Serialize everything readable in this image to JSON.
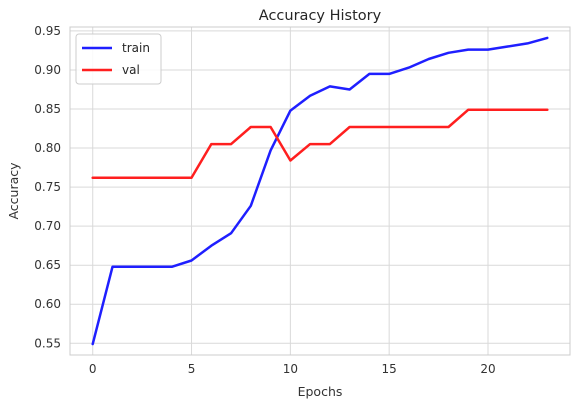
{
  "chart_data": {
    "type": "line",
    "title": "Accuracy History",
    "xlabel": "Epochs",
    "ylabel": "Accuracy",
    "xlim": [
      -1.15,
      24.15
    ],
    "ylim": [
      0.535,
      0.955
    ],
    "xticks": [
      0,
      5,
      10,
      15,
      20
    ],
    "yticks": [
      0.55,
      0.6,
      0.65,
      0.7,
      0.75,
      0.8,
      0.85,
      0.9,
      0.95
    ],
    "grid": true,
    "legend_position": "top-left",
    "x": [
      0,
      1,
      2,
      3,
      4,
      5,
      6,
      7,
      8,
      9,
      10,
      11,
      12,
      13,
      14,
      15,
      16,
      17,
      18,
      19,
      20,
      21,
      22,
      23
    ],
    "series": [
      {
        "name": "train",
        "color": "#1f1fff",
        "values": [
          0.549,
          0.648,
          0.648,
          0.648,
          0.648,
          0.656,
          0.675,
          0.691,
          0.726,
          0.797,
          0.848,
          0.867,
          0.879,
          0.875,
          0.895,
          0.895,
          0.903,
          0.914,
          0.922,
          0.926,
          0.926,
          0.93,
          0.934,
          0.941
        ]
      },
      {
        "name": "val",
        "color": "#ff1f1f",
        "values": [
          0.762,
          0.762,
          0.762,
          0.762,
          0.762,
          0.762,
          0.805,
          0.805,
          0.827,
          0.827,
          0.784,
          0.805,
          0.805,
          0.827,
          0.827,
          0.827,
          0.827,
          0.827,
          0.827,
          0.849,
          0.849,
          0.849,
          0.849,
          0.849
        ]
      }
    ]
  }
}
